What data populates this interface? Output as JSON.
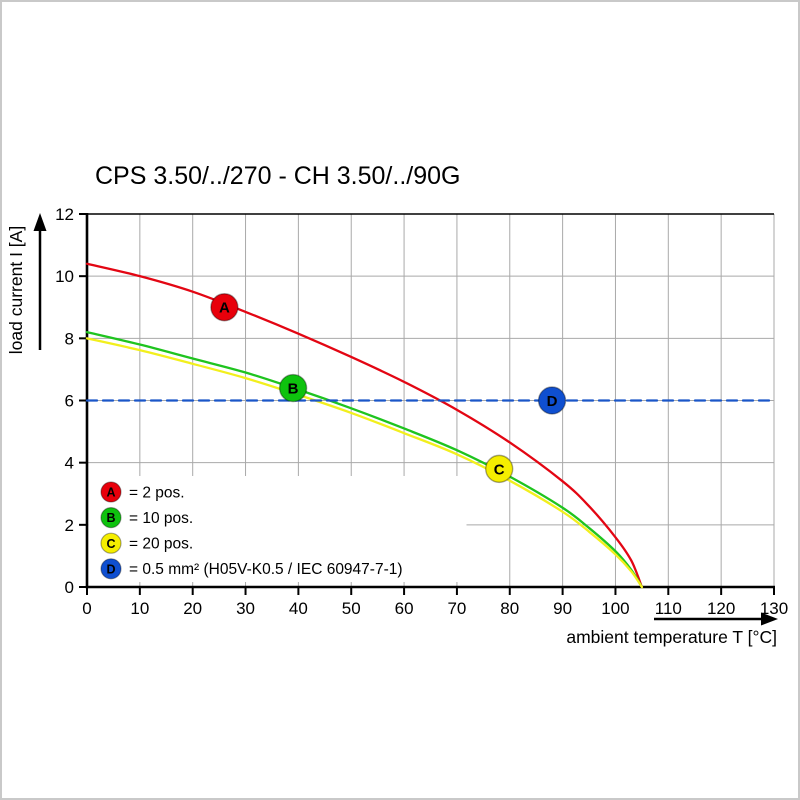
{
  "page": {
    "title": "CPS 3.50/../270 - CH 3.50/../90G"
  },
  "chart_data": {
    "type": "line",
    "title": "CPS 3.50/../270 - CH 3.50/../90G",
    "xlabel": "ambient temperature T [°C]",
    "ylabel": "load current I [A]",
    "xlim": [
      0,
      130
    ],
    "ylim": [
      0,
      12
    ],
    "xticks": [
      0,
      10,
      20,
      30,
      40,
      50,
      60,
      70,
      80,
      90,
      100,
      110,
      120,
      130
    ],
    "yticks": [
      0,
      2,
      4,
      6,
      8,
      10,
      12
    ],
    "grid": true,
    "grid_color": "#a9a9a9",
    "axis_color": "#000000",
    "legend_position": "lower-left",
    "series": [
      {
        "name": "A",
        "legend_label": "= 2 pos.",
        "color": "#e30613",
        "marker_color": "#e8000b",
        "dashed": false,
        "marker_at": {
          "x": 26,
          "y": 9.0
        },
        "points": [
          [
            0,
            10.4
          ],
          [
            10,
            10.0
          ],
          [
            20,
            9.5
          ],
          [
            30,
            8.85
          ],
          [
            40,
            8.15
          ],
          [
            50,
            7.4
          ],
          [
            60,
            6.6
          ],
          [
            70,
            5.7
          ],
          [
            80,
            4.65
          ],
          [
            90,
            3.4
          ],
          [
            95,
            2.6
          ],
          [
            100,
            1.6
          ],
          [
            103,
            0.85
          ],
          [
            105,
            0
          ]
        ]
      },
      {
        "name": "B",
        "legend_label": "= 10 pos.",
        "color": "#1fc41f",
        "marker_color": "#0ec20e",
        "dashed": false,
        "marker_at": {
          "x": 39,
          "y": 6.4
        },
        "points": [
          [
            0,
            8.2
          ],
          [
            10,
            7.8
          ],
          [
            20,
            7.35
          ],
          [
            30,
            6.9
          ],
          [
            40,
            6.35
          ],
          [
            50,
            5.75
          ],
          [
            60,
            5.1
          ],
          [
            70,
            4.4
          ],
          [
            80,
            3.55
          ],
          [
            90,
            2.55
          ],
          [
            95,
            1.9
          ],
          [
            100,
            1.15
          ],
          [
            103,
            0.55
          ],
          [
            105,
            0
          ]
        ]
      },
      {
        "name": "C",
        "legend_label": "= 20 pos.",
        "color": "#f2ef1d",
        "marker_color": "#f5ee00",
        "dashed": false,
        "marker_at": {
          "x": 78,
          "y": 3.8
        },
        "points": [
          [
            0,
            8.0
          ],
          [
            10,
            7.62
          ],
          [
            20,
            7.18
          ],
          [
            30,
            6.72
          ],
          [
            40,
            6.18
          ],
          [
            50,
            5.6
          ],
          [
            60,
            4.95
          ],
          [
            70,
            4.27
          ],
          [
            80,
            3.42
          ],
          [
            90,
            2.42
          ],
          [
            95,
            1.78
          ],
          [
            100,
            1.05
          ],
          [
            103,
            0.5
          ],
          [
            105,
            0
          ]
        ]
      },
      {
        "name": "D",
        "legend_label": "= 0.5 mm² (H05V-K0.5 / IEC 60947-7-1)",
        "color": "#1a56c8",
        "marker_color": "#0f4fd0",
        "dashed": true,
        "marker_at": {
          "x": 88,
          "y": 6.0
        },
        "points": [
          [
            0,
            6
          ],
          [
            130,
            6
          ]
        ]
      }
    ]
  }
}
